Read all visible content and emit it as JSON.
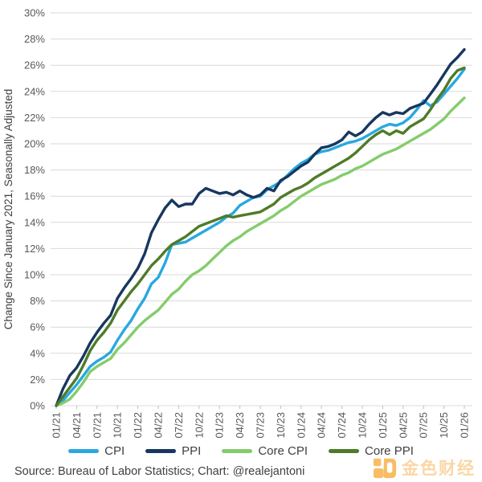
{
  "y_axis": {
    "title": "Change Since January 2021, Seasonally Adjusted",
    "tick_labels": [
      "0%",
      "2%",
      "4%",
      "6%",
      "8%",
      "10%",
      "12%",
      "14%",
      "16%",
      "18%",
      "20%",
      "22%",
      "24%",
      "26%",
      "28%",
      "30%"
    ],
    "min": 0,
    "max": 30,
    "step": 2
  },
  "x_axis": {
    "tick_labels": [
      "01/21",
      "04/21",
      "07/21",
      "10/21",
      "01/22",
      "04/22",
      "07/22",
      "10/22",
      "01/23",
      "04/23",
      "07/23",
      "10/23",
      "01/24",
      "04/24",
      "07/24",
      "10/24",
      "01/25",
      "04/25",
      "07/25",
      "10/25",
      "01/26"
    ],
    "frequency": "monthly",
    "start": "01/21",
    "end": "01/26"
  },
  "chart_data": {
    "type": "line",
    "title": "",
    "xlabel": "",
    "ylabel": "Change Since January 2021, Seasonally Adjusted",
    "ylim": [
      0,
      30
    ],
    "grid": true,
    "legend_position": "bottom",
    "x_unit": "month",
    "x_start": "01/21",
    "x_end": "01/26",
    "points_per_series": 61,
    "series": [
      {
        "name": "CPI",
        "color": "#29a8e0",
        "values": [
          0,
          0.4,
          1.0,
          1.6,
          2.3,
          3.0,
          3.4,
          3.7,
          4.1,
          5.0,
          5.8,
          6.5,
          7.4,
          8.2,
          9.3,
          9.8,
          10.9,
          12.3,
          12.4,
          12.5,
          12.8,
          13.1,
          13.4,
          13.7,
          14.0,
          14.4,
          14.7,
          15.3,
          15.6,
          15.9,
          16.0,
          16.5,
          16.8,
          17.1,
          17.6,
          18.1,
          18.5,
          18.8,
          19.2,
          19.4,
          19.5,
          19.7,
          19.9,
          20.1,
          20.2,
          20.4,
          20.7,
          21.0,
          21.3,
          21.5,
          21.4,
          21.6,
          22.0,
          22.6,
          23.3,
          22.9,
          23.2,
          23.8,
          24.4,
          25.0,
          25.7
        ]
      },
      {
        "name": "PPI",
        "color": "#17375e",
        "values": [
          0,
          1.3,
          2.3,
          2.9,
          3.8,
          4.8,
          5.6,
          6.3,
          6.9,
          8.2,
          9.0,
          9.7,
          10.5,
          11.6,
          13.2,
          14.2,
          15.1,
          15.7,
          15.2,
          15.4,
          15.4,
          16.2,
          16.6,
          16.4,
          16.2,
          16.3,
          16.1,
          16.4,
          16.1,
          15.9,
          16.1,
          16.6,
          16.4,
          17.2,
          17.5,
          17.9,
          18.3,
          18.6,
          19.2,
          19.7,
          19.8,
          20.0,
          20.3,
          20.9,
          20.6,
          20.9,
          21.5,
          22.0,
          22.4,
          22.2,
          22.4,
          22.3,
          22.7,
          22.9,
          23.1,
          23.8,
          24.5,
          25.3,
          26.1,
          26.6,
          27.2
        ]
      },
      {
        "name": "Core CPI",
        "color": "#84cc6c",
        "values": [
          0,
          0.2,
          0.5,
          1.1,
          1.8,
          2.6,
          3.0,
          3.3,
          3.6,
          4.3,
          4.8,
          5.4,
          6.0,
          6.5,
          6.9,
          7.3,
          7.9,
          8.5,
          8.9,
          9.5,
          10.0,
          10.3,
          10.7,
          11.2,
          11.7,
          12.2,
          12.6,
          12.9,
          13.3,
          13.6,
          13.9,
          14.2,
          14.5,
          14.9,
          15.2,
          15.6,
          16.0,
          16.3,
          16.6,
          16.9,
          17.1,
          17.3,
          17.6,
          17.8,
          18.1,
          18.3,
          18.6,
          18.9,
          19.2,
          19.4,
          19.6,
          19.9,
          20.2,
          20.5,
          20.8,
          21.1,
          21.5,
          21.9,
          22.5,
          23.0,
          23.5
        ]
      },
      {
        "name": "Core PPI",
        "color": "#4e7b28",
        "values": [
          0,
          0.7,
          1.4,
          2.1,
          3.1,
          4.2,
          5.0,
          5.6,
          6.3,
          7.3,
          8.0,
          8.7,
          9.3,
          10.0,
          10.7,
          11.2,
          11.8,
          12.3,
          12.6,
          12.9,
          13.3,
          13.7,
          13.9,
          14.1,
          14.3,
          14.5,
          14.4,
          14.5,
          14.6,
          14.7,
          14.8,
          15.1,
          15.4,
          15.9,
          16.2,
          16.5,
          16.7,
          17.0,
          17.4,
          17.7,
          18.0,
          18.3,
          18.6,
          18.9,
          19.3,
          19.8,
          20.3,
          20.7,
          21.0,
          20.7,
          21.0,
          20.8,
          21.3,
          21.6,
          21.9,
          22.6,
          23.4,
          24.1,
          25.0,
          25.6,
          25.8
        ]
      }
    ]
  },
  "legend": {
    "items": [
      {
        "label": "CPI",
        "color": "#29a8e0"
      },
      {
        "label": "PPI",
        "color": "#17375e"
      },
      {
        "label": "Core CPI",
        "color": "#84cc6c"
      },
      {
        "label": "Core PPI",
        "color": "#4e7b28"
      }
    ]
  },
  "footer": {
    "source": "Source: Bureau of Labor Statistics; Chart: @realejantoni"
  },
  "watermark": {
    "text": "金色财经",
    "icon": "jinse-logo-icon",
    "icon_color": "#f5a01f"
  },
  "style": {
    "gridline_color": "#d9d9d9",
    "tick_color": "#bfbfbf",
    "tick_text_color": "#595959"
  }
}
